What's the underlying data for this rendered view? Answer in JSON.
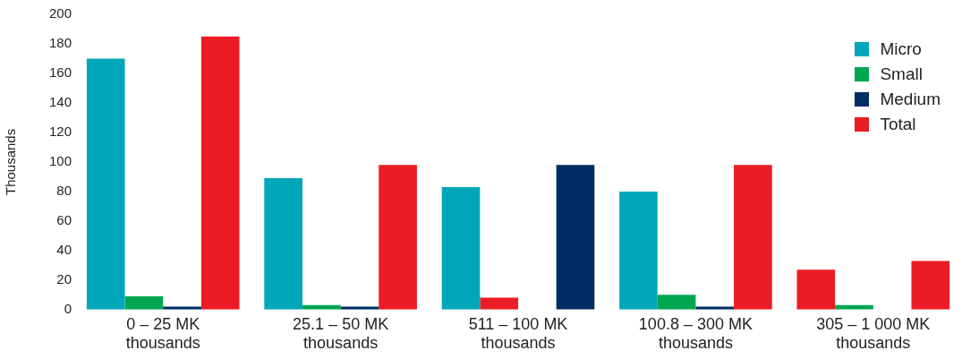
{
  "chart_data": {
    "type": "bar",
    "ylabel": "Thousands",
    "categories": [
      "0 – 25 MK thousands",
      "25.1 – 50 MK thousands",
      "511 – 100 MK thousands",
      "100.8 – 300 MK thousands",
      "305 – 1 000 MK thousands"
    ],
    "series": [
      {
        "name": "Micro",
        "color": "#00a7b8",
        "colors": [
          "#00a7b8",
          "#00a7b8",
          "#00a7b8",
          "#00a7b8",
          "#ec1c24"
        ],
        "values": [
          170,
          89,
          83,
          80,
          27
        ]
      },
      {
        "name": "Small",
        "color": "#00a650",
        "colors": [
          "#00a650",
          "#00a650",
          "#ec1c24",
          "#00a650",
          "#00a650"
        ],
        "values": [
          9,
          3,
          8,
          10,
          3
        ]
      },
      {
        "name": "Medium",
        "color": "#002d62",
        "colors": [
          "#002d62",
          "#002d62",
          "#002d62",
          "#002d62",
          "#002d62"
        ],
        "values": [
          2,
          2,
          null,
          2,
          null
        ]
      },
      {
        "name": "Total",
        "color": "#ec1c24",
        "colors": [
          "#ec1c24",
          "#ec1c24",
          "#002d62",
          "#ec1c24",
          "#ec1c24"
        ],
        "values": [
          185,
          98,
          98,
          98,
          33
        ]
      }
    ],
    "ylim": [
      0,
      200
    ],
    "yticks": [
      0,
      20,
      40,
      60,
      80,
      100,
      120,
      140,
      160,
      180,
      200
    ],
    "grid": false,
    "legend": "top right"
  }
}
